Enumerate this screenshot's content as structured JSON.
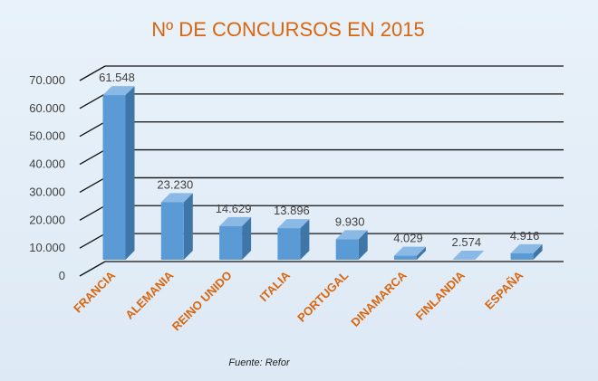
{
  "chart_data": {
    "type": "bar",
    "title": "Nº DE CONCURSOS EN 2015",
    "categories": [
      "FRANCIA",
      "ALEMANIA",
      "REINO UNIDO",
      "ITALIA",
      "PORTUGAL",
      "DINAMARCA",
      "FINLANDIA",
      "ESPAÑA"
    ],
    "values": [
      61548,
      23230,
      14629,
      13896,
      9930,
      4029,
      2574,
      4916
    ],
    "data_labels": [
      "61.548",
      "23.230",
      "14.629",
      "13.896",
      "9.930",
      "4.029",
      "2.574",
      "4.916"
    ],
    "yticks": [
      0,
      10000,
      20000,
      30000,
      40000,
      50000,
      60000,
      70000
    ],
    "ytick_labels": [
      "0",
      "10.000",
      "20.000",
      "30.000",
      "40.000",
      "50.000",
      "60.000",
      "70.000"
    ],
    "ylim": [
      0,
      70000
    ],
    "grid": true,
    "legend": "none",
    "colors": {
      "bar_front": "#5b9bd5",
      "bar_side": "#3f76a8",
      "bar_top": "#8ab9e6",
      "title": "#d9660f",
      "category_labels": "#d9660f"
    }
  },
  "source_note": "Fuente: Refor"
}
